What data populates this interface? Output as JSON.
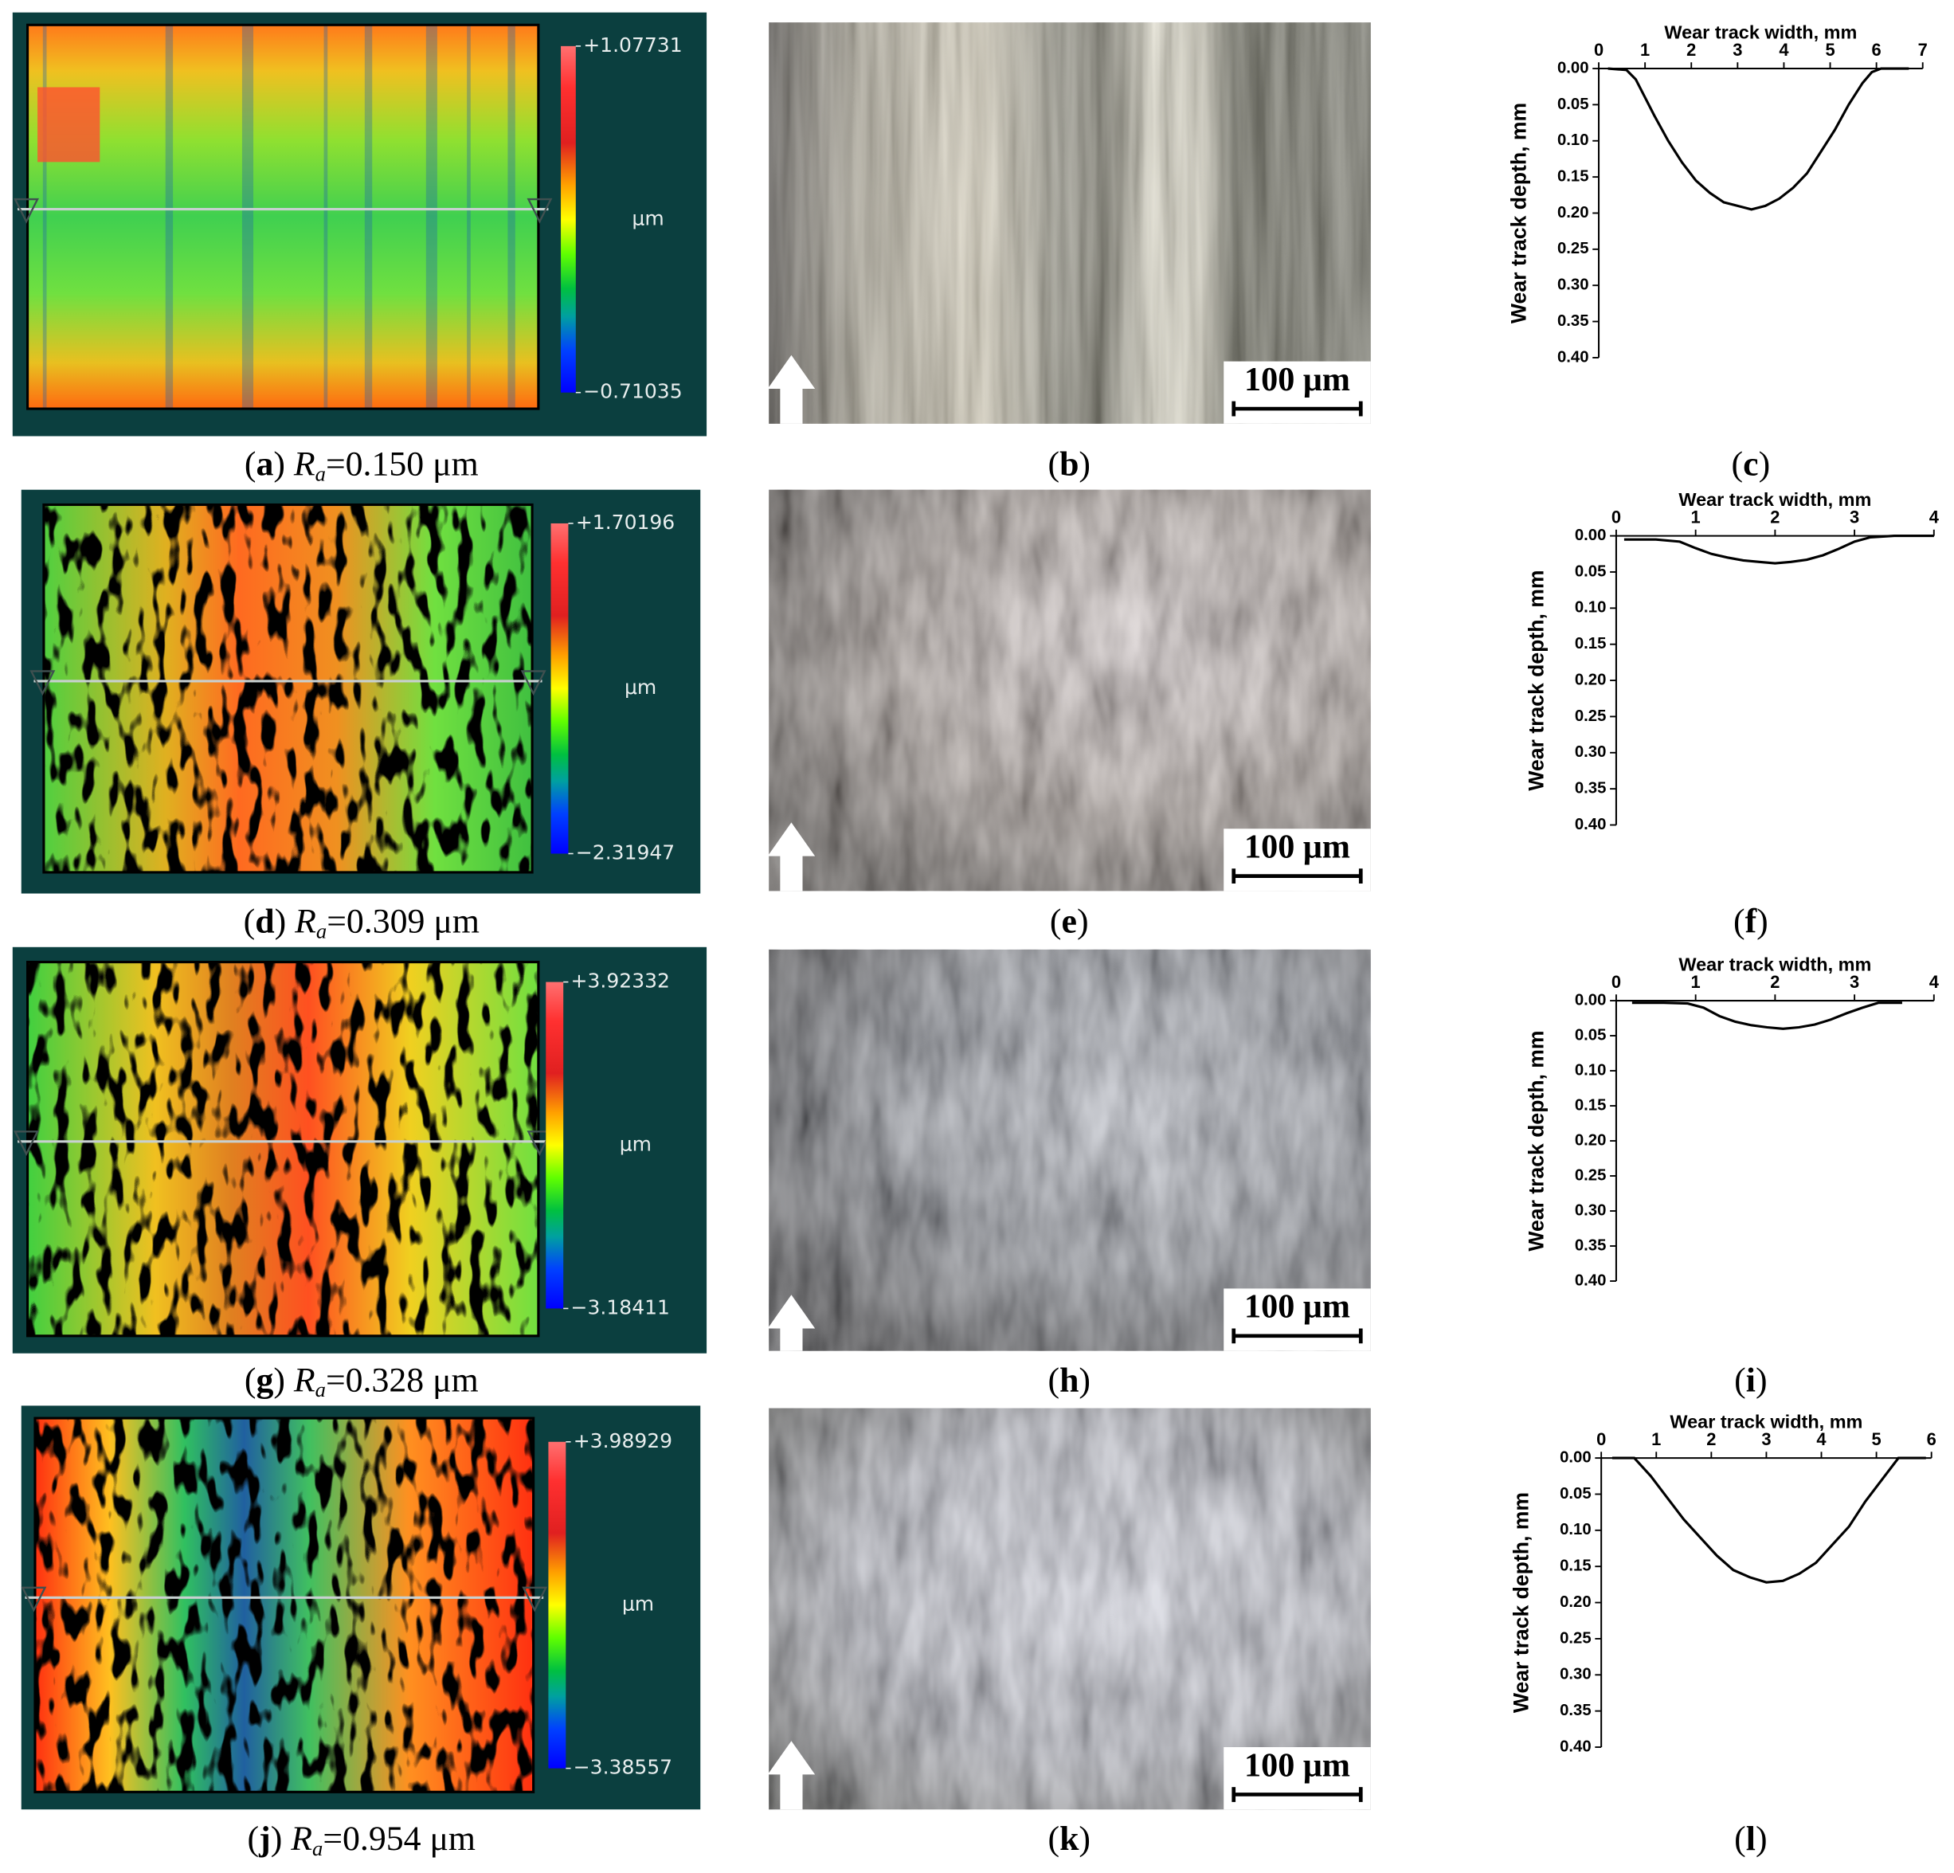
{
  "chart_data": [
    {
      "type": "line",
      "xlabel": "Wear track width, mm",
      "ylabel": "Wear track depth, mm",
      "color": "#000000",
      "x": [
        0.2,
        0.6,
        0.8,
        1.0,
        1.2,
        1.5,
        1.8,
        2.1,
        2.4,
        2.7,
        3.0,
        3.3,
        3.6,
        3.9,
        4.2,
        4.5,
        4.8,
        5.1,
        5.4,
        5.7,
        5.9,
        6.1,
        6.7
      ],
      "values": [
        0,
        0.002,
        0.015,
        0.04,
        0.065,
        0.1,
        0.13,
        0.155,
        0.172,
        0.185,
        0.19,
        0.195,
        0.19,
        0.18,
        0.165,
        0.145,
        0.115,
        0.085,
        0.05,
        0.02,
        0.005,
        0,
        0
      ],
      "xlim": [
        0,
        7
      ],
      "xticks": [
        0,
        1,
        2,
        3,
        4,
        5,
        6,
        7
      ],
      "ylim": [
        0.4,
        0
      ],
      "yticks": [
        {
          "value": 0,
          "label": "0.00"
        },
        0.05,
        {
          "value": 0.1,
          "label": "0.10"
        },
        0.15,
        {
          "value": 0.2,
          "label": "0.20"
        },
        0.25,
        {
          "value": 0.3,
          "label": "0.30"
        },
        0.35,
        {
          "value": 0.4,
          "label": "0.40"
        }
      ],
      "caption": [
        {
          "text": "(",
          "style": "normal"
        },
        {
          "text": "c",
          "style": "bold"
        },
        {
          "text": ")",
          "style": "normal"
        }
      ]
    },
    {
      "type": "line",
      "xlabel": "Wear track width, mm",
      "ylabel": "Wear track depth, mm",
      "color": "#000000",
      "x": [
        0.1,
        0.5,
        0.8,
        1.0,
        1.2,
        1.4,
        1.6,
        1.8,
        2.0,
        2.2,
        2.4,
        2.6,
        2.8,
        3.0,
        3.2,
        3.5,
        4.0
      ],
      "values": [
        0.005,
        0.005,
        0.008,
        0.017,
        0.025,
        0.03,
        0.034,
        0.036,
        0.038,
        0.036,
        0.033,
        0.027,
        0.018,
        0.008,
        0.002,
        0,
        0
      ],
      "xlim": [
        0,
        4
      ],
      "xticks": [
        0,
        1,
        2,
        3,
        4
      ],
      "ylim": [
        0.4,
        0
      ],
      "yticks": [
        {
          "value": 0,
          "label": "0.00"
        },
        0.05,
        {
          "value": 0.1,
          "label": "0.10"
        },
        0.15,
        {
          "value": 0.2,
          "label": "0.20"
        },
        0.25,
        {
          "value": 0.3,
          "label": "0.30"
        },
        0.35,
        {
          "value": 0.4,
          "label": "0.40"
        }
      ],
      "caption": [
        {
          "text": "(",
          "style": "normal"
        },
        {
          "text": "f",
          "style": "bold"
        },
        {
          "text": ")",
          "style": "normal"
        }
      ]
    },
    {
      "type": "line",
      "xlabel": "Wear track width, mm",
      "ylabel": "Wear track depth, mm",
      "color": "#000000",
      "x": [
        0.2,
        0.6,
        0.9,
        1.1,
        1.3,
        1.5,
        1.7,
        1.9,
        2.1,
        2.3,
        2.5,
        2.7,
        2.9,
        3.1,
        3.3,
        3.6
      ],
      "values": [
        0.003,
        0.003,
        0.004,
        0.01,
        0.022,
        0.03,
        0.035,
        0.038,
        0.04,
        0.038,
        0.034,
        0.027,
        0.018,
        0.01,
        0.003,
        0.003
      ],
      "xlim": [
        0,
        4
      ],
      "xticks": [
        0,
        1,
        2,
        3,
        4
      ],
      "ylim": [
        0.4,
        0
      ],
      "yticks": [
        {
          "value": 0,
          "label": "0.00"
        },
        0.05,
        {
          "value": 0.1,
          "label": "0.10"
        },
        0.15,
        {
          "value": 0.2,
          "label": "0.20"
        },
        0.25,
        {
          "value": 0.3,
          "label": "0.30"
        },
        0.35,
        {
          "value": 0.4,
          "label": "0.40"
        }
      ],
      "caption": [
        {
          "text": "(",
          "style": "normal"
        },
        {
          "text": "i",
          "style": "bold"
        },
        {
          "text": ")",
          "style": "normal"
        }
      ]
    },
    {
      "type": "line",
      "xlabel": "Wear track width, mm",
      "ylabel": "Wear track depth, mm",
      "color": "#000000",
      "x": [
        0.2,
        0.6,
        0.9,
        1.2,
        1.5,
        1.8,
        2.1,
        2.4,
        2.7,
        3.0,
        3.3,
        3.6,
        3.9,
        4.2,
        4.5,
        4.8,
        5.1,
        5.4,
        5.9
      ],
      "values": [
        0,
        0,
        0.025,
        0.055,
        0.085,
        0.11,
        0.135,
        0.155,
        0.165,
        0.172,
        0.17,
        0.16,
        0.145,
        0.12,
        0.095,
        0.06,
        0.03,
        0,
        0
      ],
      "xlim": [
        0,
        6
      ],
      "xticks": [
        0,
        1,
        2,
        3,
        4,
        5,
        6
      ],
      "ylim": [
        0.4,
        0
      ],
      "yticks": [
        {
          "value": 0,
          "label": "0.00"
        },
        0.05,
        {
          "value": 0.1,
          "label": "0.10"
        },
        0.15,
        {
          "value": 0.2,
          "label": "0.20"
        },
        0.25,
        {
          "value": 0.3,
          "label": "0.30"
        },
        0.35,
        {
          "value": 0.4,
          "label": "0.40"
        }
      ],
      "caption": [
        {
          "text": "(",
          "style": "normal"
        },
        {
          "text": "l",
          "style": "bold"
        },
        {
          "text": ")",
          "style": "normal"
        }
      ]
    }
  ],
  "maps": [
    {
      "colorbar": {
        "max": {
          "value": 1.07731,
          "label": "+1.07731"
        },
        "min": {
          "value": -0.71035,
          "label": "−0.71035"
        },
        "unit": "μm"
      },
      "caption": [
        {
          "text": "(",
          "style": "normal"
        },
        {
          "text": "a",
          "style": "bold"
        },
        {
          "text": ") ",
          "style": "normal"
        },
        {
          "text": "R",
          "style": "italic"
        },
        {
          "text": "a",
          "style": "sub"
        },
        {
          "text": "=0.150 μm",
          "style": "normal"
        }
      ]
    },
    {
      "colorbar": {
        "max": {
          "value": 1.70196,
          "label": "+1.70196"
        },
        "min": {
          "value": -2.31947,
          "label": "−2.31947"
        },
        "unit": "μm"
      },
      "caption": [
        {
          "text": "(",
          "style": "normal"
        },
        {
          "text": "d",
          "style": "bold"
        },
        {
          "text": ") ",
          "style": "normal"
        },
        {
          "text": "R",
          "style": "italic"
        },
        {
          "text": "a",
          "style": "sub"
        },
        {
          "text": "=0.309 μm",
          "style": "normal"
        }
      ]
    },
    {
      "colorbar": {
        "max": {
          "value": 3.92332,
          "label": "+3.92332"
        },
        "min": {
          "value": -3.18411,
          "label": "−3.18411"
        },
        "unit": "μm"
      },
      "caption": [
        {
          "text": "(",
          "style": "normal"
        },
        {
          "text": "g",
          "style": "bold"
        },
        {
          "text": ") ",
          "style": "normal"
        },
        {
          "text": "R",
          "style": "italic"
        },
        {
          "text": "a",
          "style": "sub"
        },
        {
          "text": "=0.328 μm",
          "style": "normal"
        }
      ]
    },
    {
      "colorbar": {
        "max": {
          "value": 3.98929,
          "label": "+3.98929"
        },
        "min": {
          "value": -3.38557,
          "label": "−3.38557"
        },
        "unit": "μm"
      },
      "caption": [
        {
          "text": "(",
          "style": "normal"
        },
        {
          "text": "j",
          "style": "bold"
        },
        {
          "text": ") ",
          "style": "normal"
        },
        {
          "text": "R",
          "style": "italic"
        },
        {
          "text": "a",
          "style": "sub"
        },
        {
          "text": "=0.954 μm",
          "style": "normal"
        }
      ]
    }
  ],
  "micrographs": [
    {
      "scale_bar": "100 μm",
      "caption": [
        {
          "text": "(",
          "style": "normal"
        },
        {
          "text": "b",
          "style": "bold"
        },
        {
          "text": ")",
          "style": "normal"
        }
      ]
    },
    {
      "scale_bar": "100 μm",
      "caption": [
        {
          "text": "(",
          "style": "normal"
        },
        {
          "text": "e",
          "style": "bold"
        },
        {
          "text": ")",
          "style": "normal"
        }
      ]
    },
    {
      "scale_bar": "100 μm",
      "caption": [
        {
          "text": "(",
          "style": "normal"
        },
        {
          "text": "h",
          "style": "bold"
        },
        {
          "text": ")",
          "style": "normal"
        }
      ]
    },
    {
      "scale_bar": "100 μm",
      "caption": [
        {
          "text": "(",
          "style": "normal"
        },
        {
          "text": "k",
          "style": "bold"
        },
        {
          "text": ")",
          "style": "normal"
        }
      ]
    }
  ]
}
